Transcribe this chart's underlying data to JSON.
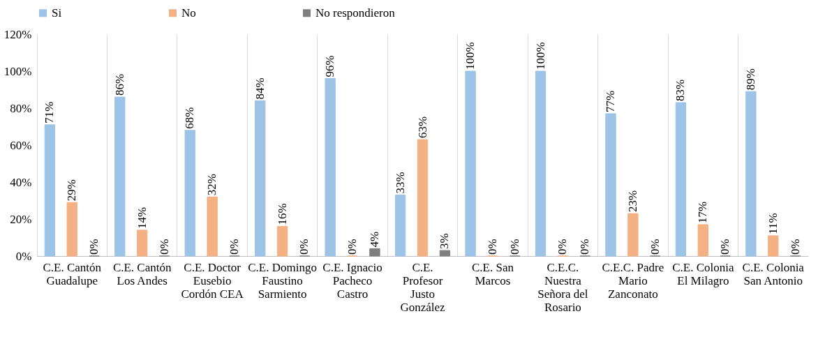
{
  "chart_data": {
    "type": "bar",
    "categories": [
      "C.E. Cantón Guadalupe",
      "C.E. Cantón Los Andes",
      "C.E. Doctor Eusebio Cordón CEA",
      "C.E. Domingo Faustino Sarmiento",
      "C.E. Ignacio Pacheco Castro",
      "C.E. Profesor Justo González",
      "C.E. San Marcos",
      "C.E.C. Nuestra Señora del Rosario",
      "C.E.C. Padre Mario Zanconato",
      "C.E. Colonia El Milagro",
      "C.E. Colonia San Antonio"
    ],
    "series": [
      {
        "name": "Si",
        "color": "#9dc3e6",
        "values": [
          71,
          86,
          68,
          84,
          96,
          33,
          100,
          100,
          77,
          83,
          89
        ],
        "value_labels": [
          "71%",
          "86%",
          "68%",
          "84%",
          "96%",
          "33%",
          "100%",
          "100%",
          "77%",
          "83%",
          "89%"
        ]
      },
      {
        "name": "No",
        "color": "#f4b183",
        "values": [
          29,
          14,
          32,
          16,
          0,
          63,
          0,
          0,
          23,
          17,
          11
        ],
        "value_labels": [
          "29%",
          "14%",
          "32%",
          "16%",
          "0%",
          "63%",
          "0%",
          "0%",
          "23%",
          "17%",
          "11%"
        ]
      },
      {
        "name": "No respondieron",
        "color": "#7f7f7f",
        "values": [
          0,
          0,
          0,
          0,
          4,
          3,
          0,
          0,
          0,
          0,
          0
        ],
        "value_labels": [
          "0%",
          "0%",
          "0%",
          "0%",
          "4%",
          "3%",
          "0%",
          "0%",
          "0%",
          "0%",
          "0%"
        ]
      }
    ],
    "ylim": [
      0,
      120
    ],
    "yticks": [
      {
        "value": 0,
        "label": "0%"
      },
      {
        "value": 20,
        "label": "20%"
      },
      {
        "value": 40,
        "label": "40%"
      },
      {
        "value": 60,
        "label": "60%"
      },
      {
        "value": 80,
        "label": "80%"
      },
      {
        "value": 100,
        "label": "100%"
      },
      {
        "value": 120,
        "label": "120%"
      }
    ],
    "grid": "x",
    "legend": "top"
  }
}
